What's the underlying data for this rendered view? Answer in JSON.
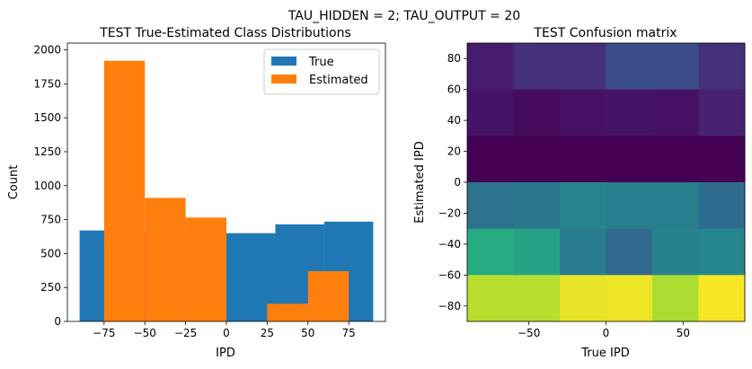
{
  "suptitle": "TAU_HIDDEN = 2; TAU_OUTPUT = 20",
  "chart_data": [
    {
      "type": "bar",
      "title": "TEST True-Estimated Class Distributions",
      "xlabel": "IPD",
      "ylabel": "Count",
      "xlim": [
        -97.5,
        97.5
      ],
      "ylim": [
        0,
        2050
      ],
      "x_ticks": [
        -75,
        -50,
        -25,
        0,
        25,
        50,
        75
      ],
      "x_tick_labels": [
        "−75",
        "−50",
        "−25",
        "0",
        "25",
        "50",
        "75"
      ],
      "y_ticks": [
        0,
        250,
        500,
        750,
        1000,
        1250,
        1500,
        1750,
        2000
      ],
      "legend": {
        "position": "top-right",
        "entries": [
          "True",
          "Estimated"
        ]
      },
      "series": [
        {
          "name": "True",
          "color": "#1f77b4",
          "bins": [
            {
              "x0": -90,
              "x1": -60,
              "value": 670
            },
            {
              "x0": -60,
              "x1": -30,
              "value": 660
            },
            {
              "x0": -30,
              "x1": 0,
              "value": 665
            },
            {
              "x0": 0,
              "x1": 30,
              "value": 650
            },
            {
              "x0": 30,
              "x1": 60,
              "value": 715
            },
            {
              "x0": 60,
              "x1": 90,
              "value": 735
            }
          ]
        },
        {
          "name": "Estimated",
          "color": "#ff7f0e",
          "bins": [
            {
              "x0": -75,
              "x1": -50,
              "value": 1920
            },
            {
              "x0": -50,
              "x1": -25,
              "value": 910
            },
            {
              "x0": -25,
              "x1": 0,
              "value": 765
            },
            {
              "x0": 25,
              "x1": 50,
              "value": 130
            },
            {
              "x0": 50,
              "x1": 75,
              "value": 370
            }
          ]
        }
      ]
    },
    {
      "type": "heatmap",
      "title": "TEST Confusion matrix",
      "xlabel": "True IPD",
      "ylabel": "Estimated IPD",
      "xlim": [
        -90,
        90
      ],
      "ylim": [
        -90,
        90
      ],
      "x_ticks": [
        -50,
        0,
        50
      ],
      "x_tick_labels": [
        "−50",
        "0",
        "50"
      ],
      "y_ticks": [
        -80,
        -60,
        -40,
        -20,
        0,
        20,
        40,
        60,
        80
      ],
      "y_tick_labels": [
        "−80",
        "−60",
        "−40",
        "−20",
        "0",
        "20",
        "40",
        "60",
        "80"
      ],
      "colormap": "viridis",
      "value_range": [
        0,
        1
      ],
      "x_edges": [
        -90,
        -60,
        -30,
        0,
        30,
        60,
        90
      ],
      "y_edges": [
        -90,
        -60,
        -30,
        0,
        30,
        60,
        90
      ],
      "rows_top_to_bottom": [
        [
          0.1,
          0.16,
          0.16,
          0.24,
          0.24,
          0.16
        ],
        [
          0.07,
          0.04,
          0.06,
          0.07,
          0.06,
          0.12
        ],
        [
          0.0,
          0.0,
          0.0,
          0.0,
          0.0,
          0.0
        ],
        [
          0.38,
          0.4,
          0.45,
          0.43,
          0.43,
          0.36
        ],
        [
          0.62,
          0.58,
          0.42,
          0.34,
          0.44,
          0.46
        ],
        [
          0.9,
          0.9,
          0.97,
          0.98,
          0.88,
          0.99
        ]
      ]
    }
  ]
}
